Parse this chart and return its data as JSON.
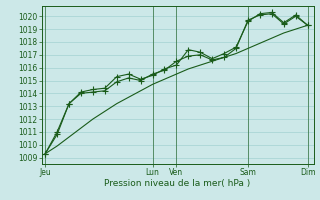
{
  "bg_color": "#cce8e8",
  "grid_color": "#99cccc",
  "line_color": "#1a5c1a",
  "xlabel": "Pression niveau de la mer( hPa )",
  "ylim_min": 1008.5,
  "ylim_max": 1020.8,
  "yticks": [
    1009,
    1010,
    1011,
    1012,
    1013,
    1014,
    1015,
    1016,
    1017,
    1018,
    1019,
    1020
  ],
  "xtick_labels": [
    "Jeu",
    "Lun",
    "Ven",
    "Sam",
    "Dim"
  ],
  "xtick_positions": [
    0,
    9,
    11,
    17,
    22
  ],
  "xlim_min": -0.3,
  "xlim_max": 22.5,
  "series1_x": [
    0,
    1,
    2,
    3,
    4,
    5,
    6,
    7,
    8,
    9,
    10,
    11,
    12,
    13,
    14,
    15,
    16,
    17,
    18,
    19,
    20,
    21,
    22
  ],
  "series1_y": [
    1009.3,
    1010.8,
    1013.2,
    1014.0,
    1014.1,
    1014.2,
    1014.9,
    1015.2,
    1015.0,
    1015.5,
    1015.8,
    1016.5,
    1016.9,
    1017.0,
    1016.6,
    1016.8,
    1017.5,
    1019.7,
    1020.1,
    1020.2,
    1019.4,
    1020.0,
    1019.3
  ],
  "series2_x": [
    0,
    1,
    2,
    3,
    4,
    5,
    6,
    7,
    8,
    9,
    10,
    11,
    12,
    13,
    14,
    15,
    16,
    17,
    18,
    19,
    20,
    21,
    22
  ],
  "series2_y": [
    1009.3,
    1011.0,
    1013.2,
    1014.1,
    1014.3,
    1014.4,
    1015.3,
    1015.5,
    1015.1,
    1015.4,
    1015.9,
    1016.2,
    1017.4,
    1017.2,
    1016.7,
    1017.1,
    1017.6,
    1019.6,
    1020.2,
    1020.3,
    1019.5,
    1020.1,
    1019.3
  ],
  "series3_x": [
    0,
    1,
    2,
    3,
    4,
    5,
    6,
    7,
    8,
    9,
    10,
    11,
    12,
    13,
    14,
    15,
    16,
    17,
    18,
    19,
    20,
    21,
    22
  ],
  "series3_y": [
    1009.3,
    1009.9,
    1010.6,
    1011.3,
    1012.0,
    1012.6,
    1013.2,
    1013.7,
    1014.2,
    1014.7,
    1015.1,
    1015.5,
    1015.9,
    1016.2,
    1016.5,
    1016.8,
    1017.1,
    1017.5,
    1017.9,
    1018.3,
    1018.7,
    1019.0,
    1019.3
  ],
  "ylabel_fontsize": 5.5,
  "xlabel_fontsize": 6.5,
  "tick_fontsize": 5.5,
  "lw": 0.8,
  "marker": "+",
  "marker_size": 4
}
